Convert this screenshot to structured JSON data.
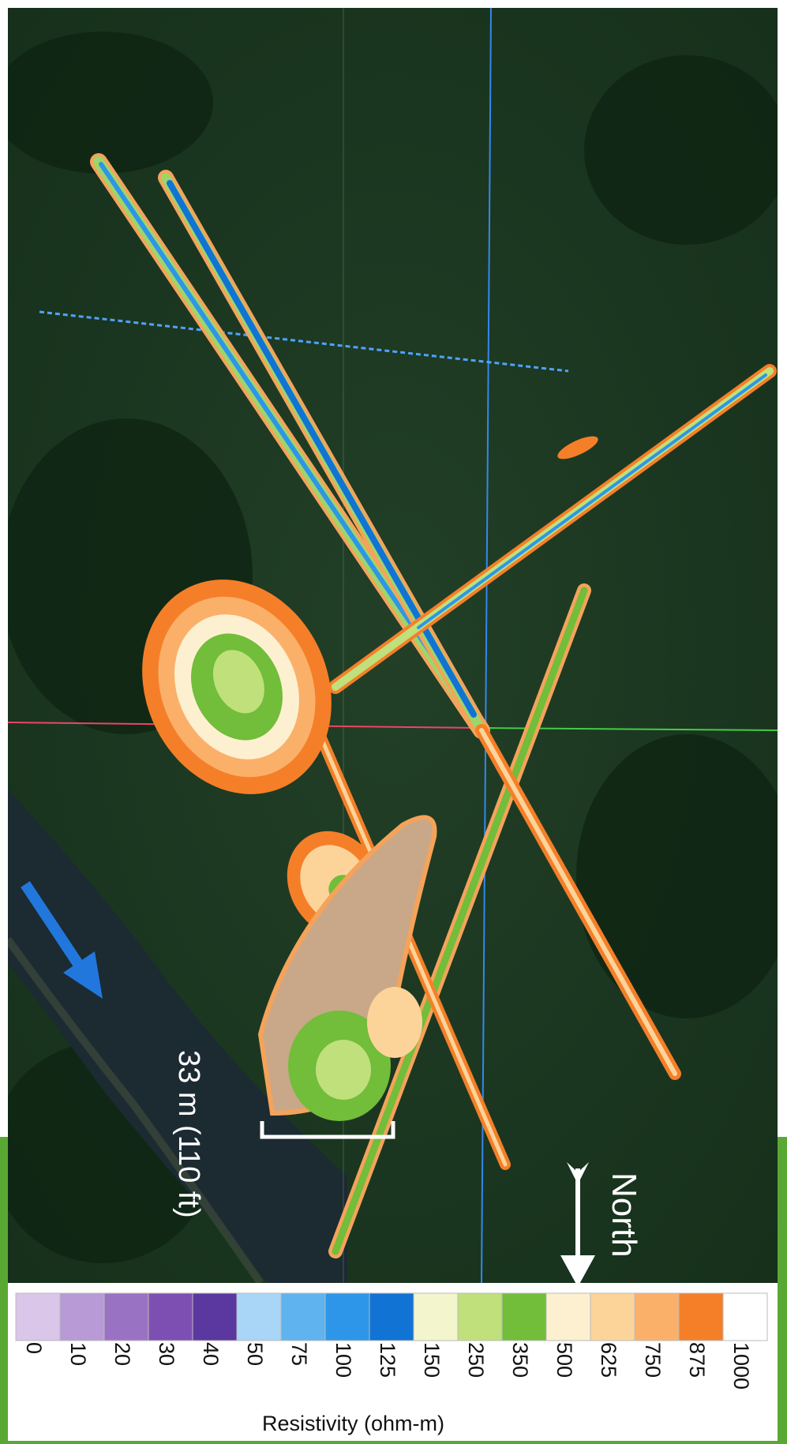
{
  "map": {
    "scale_label": "33 m (110 ft)",
    "north_label": "North"
  },
  "legend": {
    "title": "Resistivity (ohm-m)",
    "ticks": [
      "0",
      "10",
      "20",
      "30",
      "40",
      "50",
      "75",
      "100",
      "125",
      "150",
      "250",
      "350",
      "500",
      "625",
      "750",
      "875",
      "1000"
    ],
    "colors": [
      "#d9c6e8",
      "#b79ad6",
      "#9a72c4",
      "#7d4fb2",
      "#5b37a0",
      "#a9d6f7",
      "#5fb3ef",
      "#2e96e8",
      "#1173d4",
      "#f3f6cc",
      "#bfe07a",
      "#72bd3a",
      "#fdf0d0",
      "#fcd49a",
      "#fbb06a",
      "#f57f28",
      "#ffffff"
    ]
  },
  "colors": {
    "vegetation": "#1f3a23",
    "river": "#1c2a32",
    "survey_line_blue": "#3388ee",
    "survey_line_green": "#44cc44",
    "survey_line_red": "#ee4466",
    "arrow_blue": "#2277dd"
  }
}
